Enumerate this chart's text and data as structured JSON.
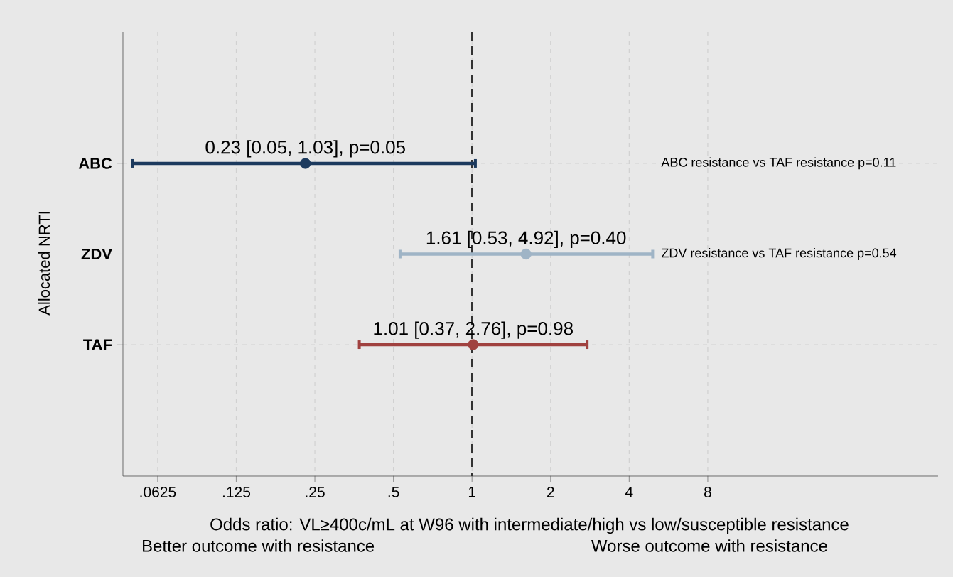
{
  "chart_data": {
    "type": "scatter",
    "ylabel": "Allocated NRTI",
    "xlabel": "Odds ratio: VL≥400c/mL at W96 with intermediate/high vs low/susceptible resistance",
    "categories": [
      "ABC",
      "ZDV",
      "TAF"
    ],
    "orientation": "horizontal",
    "values": [
      0.23,
      1.61,
      1.01
    ],
    "errors": [
      [
        0.05,
        1.03
      ],
      [
        0.53,
        4.92
      ],
      [
        0.37,
        2.76
      ]
    ],
    "colors": [
      "#1c3a5e",
      "#9fb4c6",
      "#a0413f"
    ],
    "value_labels": [
      "0.23 [0.05, 1.03], p=0.05",
      "1.61 [0.53, 4.92], p=0.40",
      "1.01 [0.37, 2.76], p=0.98"
    ],
    "log": "x",
    "xlim": [
      0.046,
      61
    ],
    "xticks": [
      {
        "value": 0.0625,
        "label": ".0625"
      },
      {
        "value": 0.125,
        "label": ".125"
      },
      {
        "value": 0.25,
        "label": ".25"
      },
      {
        "value": 0.5,
        "label": ".5"
      },
      1,
      2,
      4,
      8
    ],
    "grid": true,
    "marker": "circle",
    "ref_lines": [
      {
        "axis": "x",
        "value": 1,
        "color": "#333333",
        "line_style": "dashed"
      }
    ],
    "annotations": [
      "ABC resistance vs TAF resistance p=0.11",
      "ZDV resistance vs TAF resistance p=0.54",
      "Better outcome with resistance",
      "Worse outcome with resistance"
    ]
  }
}
